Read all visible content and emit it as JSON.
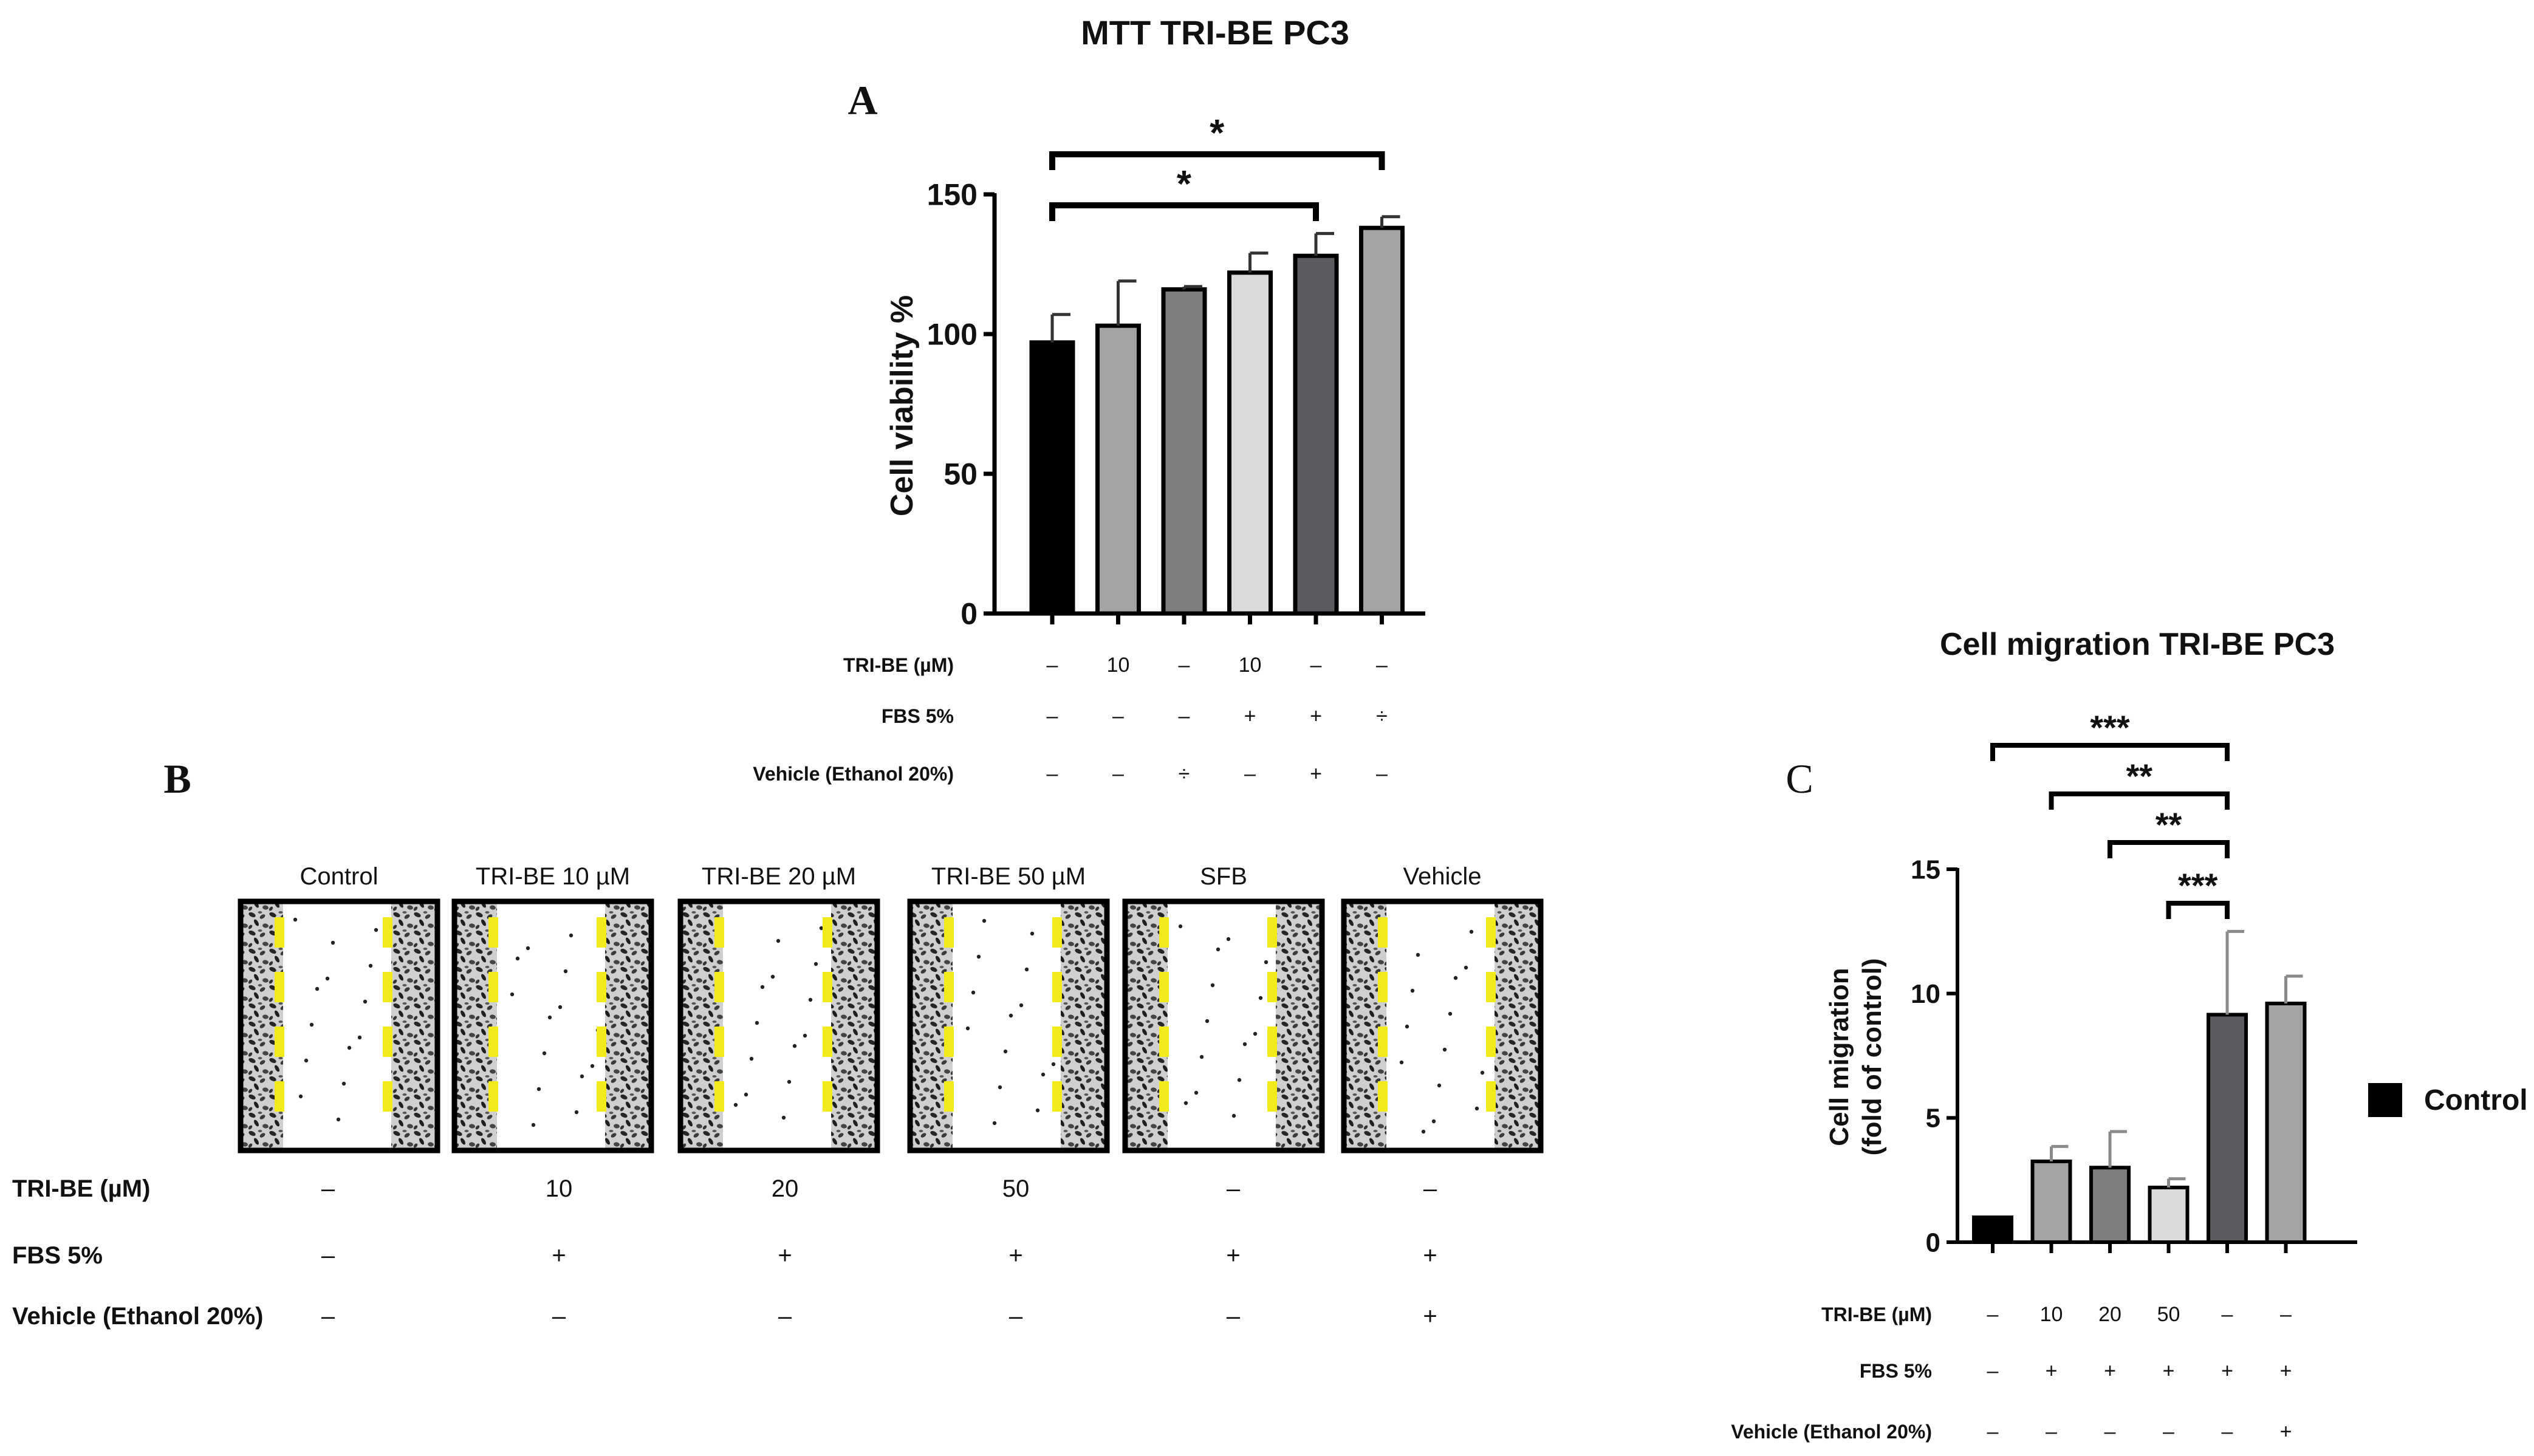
{
  "title": "MTT TRI-BE  PC3",
  "panel_labels": {
    "a": "A",
    "b": "B",
    "c": "C"
  },
  "colors": {
    "black": "#000000",
    "light_gray": "#a3a3a6",
    "mid_gray": "#7e7e81",
    "pale_gray": "#dadadc",
    "dark_gray": "#5c5c60",
    "gap_marker": "#f3ea1c"
  },
  "chart_data": [
    {
      "id": "A",
      "type": "bar",
      "title": "",
      "ylabel": "Cell viability %",
      "ylim": [
        0,
        150
      ],
      "yticks": [
        0,
        50,
        100,
        150
      ],
      "categories": [
        "1",
        "2",
        "3",
        "4",
        "5",
        "6"
      ],
      "values": [
        97,
        103,
        116,
        122,
        128,
        138
      ],
      "errors": [
        10,
        16,
        1,
        7,
        8,
        4
      ],
      "bar_colors": [
        "#000000",
        "#a3a3a6",
        "#7e7e81",
        "#dadadc",
        "#5c5c60",
        "#a3a3a6"
      ],
      "condition_rows": [
        {
          "label": "TRI-BE (µM)",
          "values": [
            "–",
            "10",
            "–",
            "10",
            "–",
            "–"
          ]
        },
        {
          "label": "FBS 5%",
          "values": [
            "–",
            "–",
            "–",
            "+",
            "+",
            "÷"
          ]
        },
        {
          "label": "Vehicle (Ethanol 20%)",
          "values": [
            "–",
            "–",
            "÷",
            "–",
            "+",
            "–"
          ]
        }
      ],
      "significance": [
        {
          "from": 1,
          "to": 6,
          "label": "*"
        },
        {
          "from": 1,
          "to": 5,
          "label": "*"
        }
      ]
    },
    {
      "id": "C",
      "type": "bar",
      "title": "Cell migration TRI-BE PC3",
      "ylabel_lines": [
        "Cell migration",
        "(fold of control)"
      ],
      "ylim": [
        0,
        15
      ],
      "yticks": [
        0,
        5,
        10,
        15
      ],
      "categories": [
        "1",
        "2",
        "3",
        "4",
        "5",
        "6"
      ],
      "values": [
        1.0,
        3.25,
        3.0,
        2.2,
        9.15,
        9.6
      ],
      "errors": [
        0,
        0.6,
        1.45,
        0.35,
        3.35,
        1.1
      ],
      "bar_colors": [
        "#000000",
        "#a3a3a6",
        "#7e7e81",
        "#dadadc",
        "#5c5c60",
        "#a3a3a6"
      ],
      "legend": {
        "entries": [
          "Control"
        ],
        "position": "right"
      },
      "condition_rows": [
        {
          "label": "TRI-BE (µM)",
          "values": [
            "–",
            "10",
            "20",
            "50",
            "–",
            "–"
          ]
        },
        {
          "label": "FBS 5%",
          "values": [
            "–",
            "+",
            "+",
            "+",
            "+",
            "+"
          ]
        },
        {
          "label": "Vehicle (Ethanol 20%)",
          "values": [
            "–",
            "–",
            "–",
            "–",
            "–",
            "+"
          ]
        }
      ],
      "significance": [
        {
          "from": 1,
          "to": 5,
          "label": "***"
        },
        {
          "from": 2,
          "to": 5,
          "label": "**"
        },
        {
          "from": 3,
          "to": 5,
          "label": "**"
        },
        {
          "from": 4,
          "to": 5,
          "label": "***"
        }
      ]
    }
  ],
  "panel_b": {
    "image_titles": [
      "Control",
      "TRI-BE 10 µM",
      "TRI-BE 20 µM",
      "TRI-BE 50 µM",
      "SFB",
      "Vehicle"
    ],
    "condition_rows": [
      {
        "label": "TRI-BE (µM)",
        "values": [
          "–",
          "10",
          "20",
          "50",
          "–",
          "–"
        ]
      },
      {
        "label": "FBS 5%",
        "values": [
          "–",
          "+",
          "+",
          "+",
          "+",
          "+"
        ]
      },
      {
        "label": "Vehicle (Ethanol 20%)",
        "values": [
          "–",
          "–",
          "–",
          "–",
          "–",
          "+"
        ]
      }
    ]
  }
}
